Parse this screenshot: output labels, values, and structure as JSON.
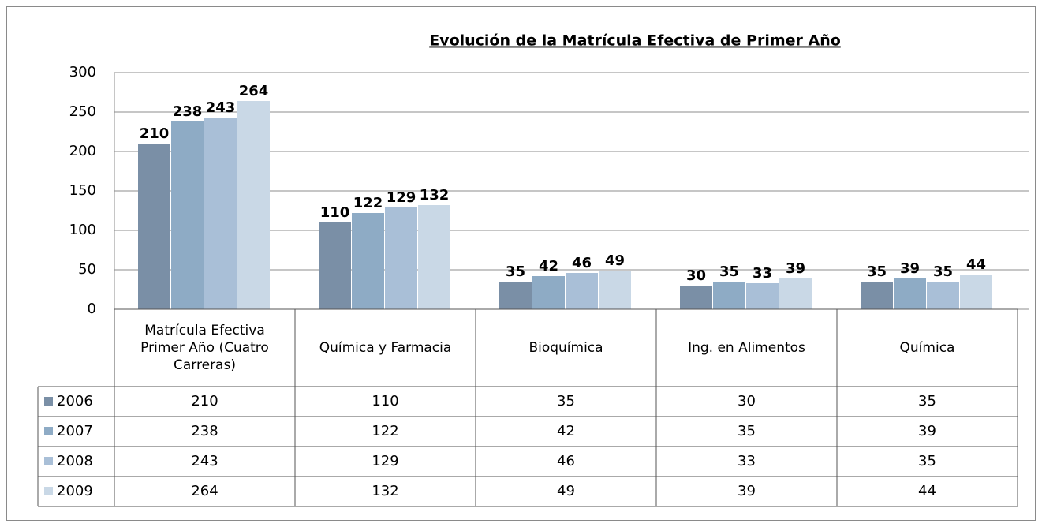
{
  "chart_data": {
    "type": "bar",
    "title": "Evolución de la Matrícula Efectiva de Primer Año",
    "categories": [
      "Matrícula Efectiva Primer Año (Cuatro Carreras)",
      "Química y Farmacia",
      "Bioquímica",
      "Ing. en  Alimentos",
      "Química"
    ],
    "series": [
      {
        "name": "2006",
        "color": "#7a8fa6",
        "values": [
          210,
          110,
          35,
          30,
          35
        ]
      },
      {
        "name": "2007",
        "color": "#8eabc5",
        "values": [
          238,
          122,
          42,
          35,
          39
        ]
      },
      {
        "name": "2008",
        "color": "#a9bfd7",
        "values": [
          243,
          129,
          46,
          33,
          35
        ]
      },
      {
        "name": "2009",
        "color": "#c9d8e6",
        "values": [
          264,
          132,
          49,
          39,
          44
        ]
      }
    ],
    "ylim": [
      0,
      300
    ],
    "yticks": [
      0,
      50,
      100,
      150,
      200,
      250,
      300
    ],
    "grid": true
  }
}
